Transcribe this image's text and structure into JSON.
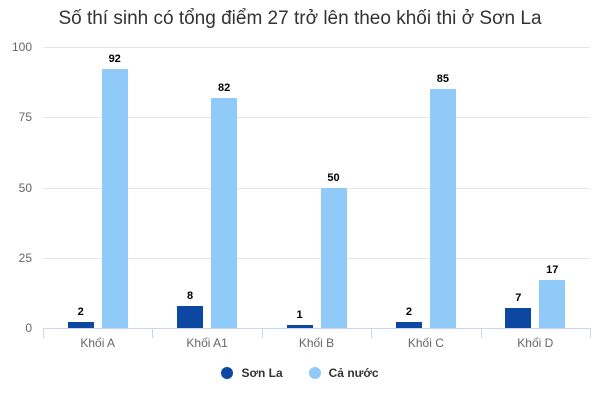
{
  "chart_data": {
    "type": "bar",
    "title": "Số thí sinh có tổng điểm 27 trở lên theo khối thi ở Sơn La",
    "xlabel": "",
    "ylabel": "",
    "ylim": [
      0,
      100
    ],
    "yticks": [
      0,
      25,
      50,
      75,
      100
    ],
    "grid": true,
    "legend_position": "bottom",
    "categories": [
      "Khối A",
      "Khối A1",
      "Khối B",
      "Khối C",
      "Khối D"
    ],
    "series": [
      {
        "name": "Sơn La",
        "color": "#0d47a1",
        "values": [
          2,
          8,
          1,
          2,
          7
        ]
      },
      {
        "name": "Cả nước",
        "color": "#90caf9",
        "values": [
          92,
          82,
          50,
          85,
          17
        ]
      }
    ]
  }
}
